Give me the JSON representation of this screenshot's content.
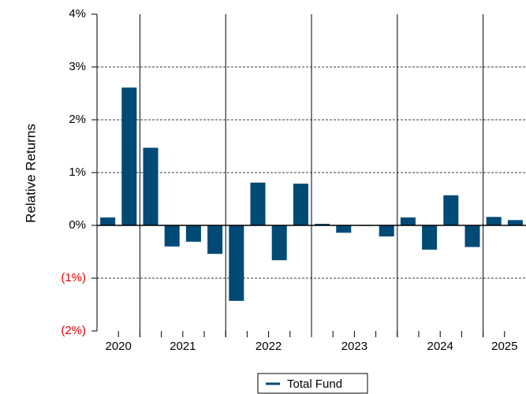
{
  "chart_data": {
    "type": "bar",
    "y_axis_label": "Relative Returns",
    "year_labels": [
      "2020",
      "2021",
      "2022",
      "2023",
      "2024",
      "2025"
    ],
    "quarters_per_year": [
      2,
      4,
      4,
      4,
      4,
      2
    ],
    "categories": [
      null,
      null,
      null,
      null,
      null,
      null,
      null,
      null,
      null,
      null,
      null,
      null,
      null,
      null,
      null,
      null,
      null,
      null,
      null,
      null
    ],
    "series": [
      {
        "name": "Total Fund",
        "color": "#004a75",
        "values": [
          0.15,
          2.61,
          1.47,
          -0.4,
          -0.31,
          -0.54,
          -1.43,
          0.81,
          -0.66,
          0.79,
          0.03,
          -0.14,
          -0.01,
          -0.21,
          0.15,
          -0.46,
          0.57,
          -0.41,
          0.16,
          0.1
        ]
      }
    ],
    "ylim": [
      -2,
      4
    ],
    "yticks": [
      {
        "value": -2,
        "label": "(2%)"
      },
      {
        "value": -1,
        "label": "(1%)"
      },
      {
        "value": 0,
        "label": "0%"
      },
      {
        "value": 1,
        "label": "1%"
      },
      {
        "value": 2,
        "label": "2%"
      },
      {
        "value": 3,
        "label": "3%"
      },
      {
        "value": 4,
        "label": "4%"
      }
    ],
    "grid": true,
    "negative_tick_color": "#e00000",
    "legend_position": "bottom"
  }
}
